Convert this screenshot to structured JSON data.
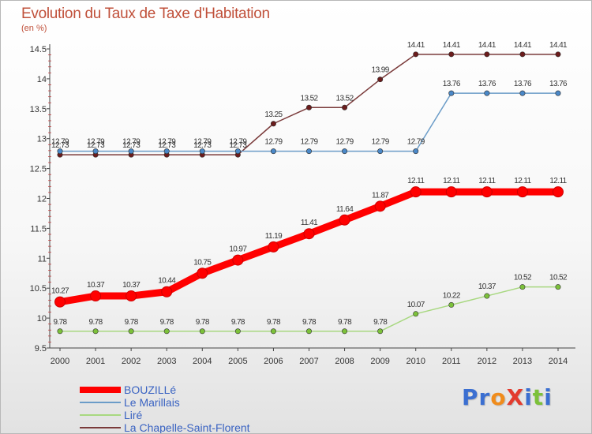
{
  "title": "Evolution du Taux de Taxe d'Habitation",
  "unit": "(en %)",
  "brand": {
    "text": "ProXiti",
    "letters": [
      {
        "ch": "P",
        "color": "#3b6fd1"
      },
      {
        "ch": "r",
        "color": "#3b6fd1"
      },
      {
        "ch": "o",
        "color": "#f08c1c"
      },
      {
        "ch": "X",
        "color": "#e33b2e"
      },
      {
        "ch": "i",
        "color": "#3b6fd1"
      },
      {
        "ch": "t",
        "color": "#7cc13a"
      },
      {
        "ch": "i",
        "color": "#3b6fd1"
      }
    ]
  },
  "chart_data": {
    "type": "line",
    "title": "Evolution du Taux de Taxe d'Habitation",
    "ylabel": "(en %)",
    "xlabel": "",
    "x": [
      2000,
      2001,
      2002,
      2003,
      2004,
      2005,
      2006,
      2007,
      2008,
      2009,
      2010,
      2011,
      2012,
      2013,
      2014
    ],
    "ylim": [
      9.5,
      14.5
    ],
    "yticks": [
      9.5,
      10,
      10.5,
      11,
      11.5,
      12,
      12.5,
      13,
      13.5,
      14,
      14.5
    ],
    "ytick_labels": [
      "9.5",
      "10",
      "10.5",
      "11",
      "11.5",
      "12",
      "12.5",
      "13",
      "13.5",
      "14",
      "14.5"
    ],
    "grid": false,
    "legend_position": "bottom-left",
    "series": [
      {
        "name": "BOUZILLé",
        "color": "#ff0000",
        "marker_color": "#ff0000",
        "emphasis": "thick",
        "values": [
          10.27,
          10.37,
          10.37,
          10.44,
          10.75,
          10.97,
          11.19,
          11.41,
          11.64,
          11.87,
          12.11,
          12.11,
          12.11,
          12.11,
          12.11
        ],
        "labels": [
          "10.27",
          "10.37",
          "10.37",
          "10.44",
          "10.75",
          "10.97",
          "11.19",
          "11.41",
          "11.64",
          "11.87",
          "12.11",
          "12.11",
          "12.11",
          "12.11",
          "12.11"
        ]
      },
      {
        "name": "Le Marillais",
        "color": "#6b9cc8",
        "marker_color": "#4a88c8",
        "emphasis": "normal",
        "values": [
          12.79,
          12.79,
          12.79,
          12.79,
          12.79,
          12.79,
          12.79,
          12.79,
          12.79,
          12.79,
          12.79,
          13.76,
          13.76,
          13.76,
          13.76
        ],
        "labels": [
          "12.79",
          "12.79",
          "12.79",
          "12.79",
          "12.79",
          "12.79",
          "12.79",
          "12.79",
          "12.79",
          "12.79",
          "12.79",
          "13.76",
          "13.76",
          "13.76",
          "13.76"
        ]
      },
      {
        "name": "Liré",
        "color": "#a8d880",
        "marker_color": "#7cc13a",
        "emphasis": "normal",
        "values": [
          9.78,
          9.78,
          9.78,
          9.78,
          9.78,
          9.78,
          9.78,
          9.78,
          9.78,
          9.78,
          10.07,
          10.22,
          10.37,
          10.52,
          10.52
        ],
        "labels": [
          "9.78",
          "9.78",
          "9.78",
          "9.78",
          "9.78",
          "9.78",
          "9.78",
          "9.78",
          "9.78",
          "9.78",
          "10.07",
          "10.22",
          "10.37",
          "10.52",
          "10.52"
        ]
      },
      {
        "name": "La Chapelle-Saint-Florent",
        "color": "#7a3a3a",
        "marker_color": "#6b1c1c",
        "emphasis": "normal",
        "values": [
          12.73,
          12.73,
          12.73,
          12.73,
          12.73,
          12.73,
          13.25,
          13.52,
          13.52,
          13.99,
          14.41,
          14.41,
          14.41,
          14.41,
          14.41
        ],
        "labels": [
          "12.73",
          "12.73",
          "12.73",
          "12.73",
          "12.73",
          "12.73",
          "13.25",
          "13.52",
          "13.52",
          "13.99",
          "14.41",
          "14.41",
          "14.41",
          "14.41",
          "14.41"
        ]
      }
    ]
  }
}
